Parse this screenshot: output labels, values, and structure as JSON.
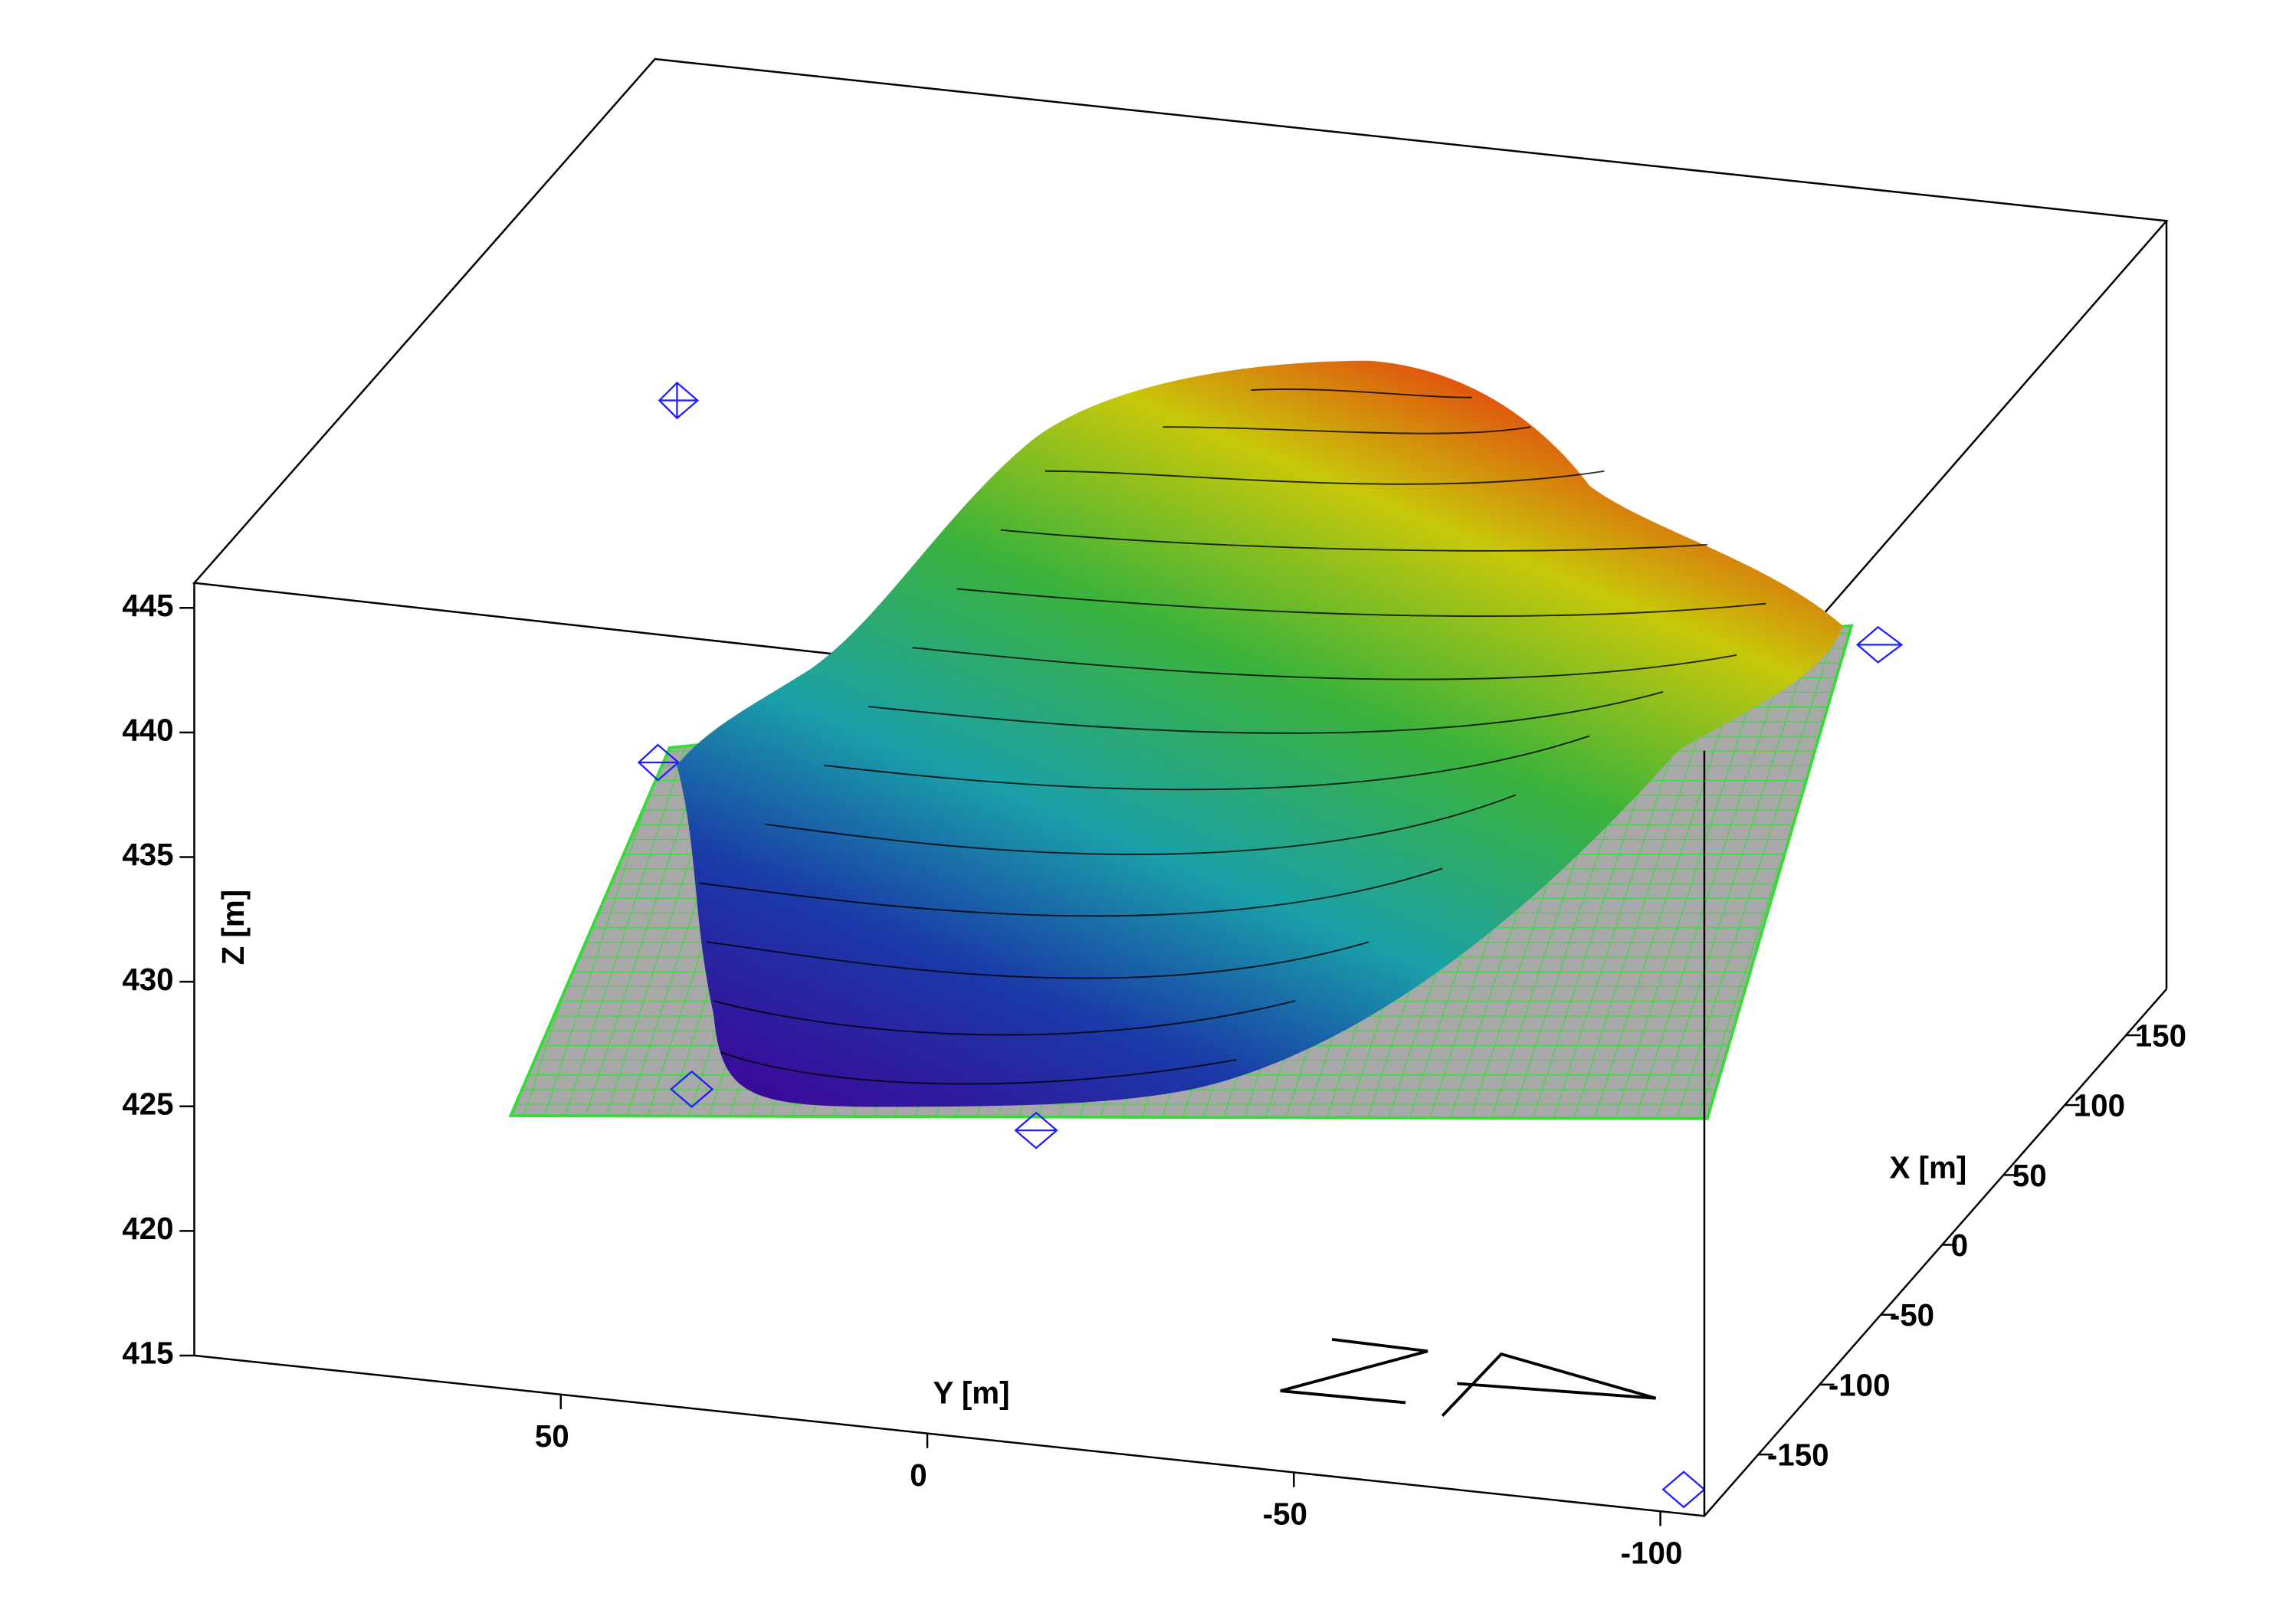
{
  "chart_data": {
    "type": "surface3d",
    "xlabel": "X [m]",
    "ylabel": "Y [m]",
    "zlabel": "Z [m]",
    "xlim": [
      -194,
      183
    ],
    "xticks": [
      150,
      100,
      50,
      0,
      -50,
      -100,
      -150
    ],
    "ylim": [
      100,
      -106
    ],
    "yticks": [
      50,
      0,
      -50,
      -100
    ],
    "zlim": [
      415,
      446
    ],
    "zticks": [
      415,
      420,
      425,
      430,
      435,
      440,
      445
    ]
  }
}
